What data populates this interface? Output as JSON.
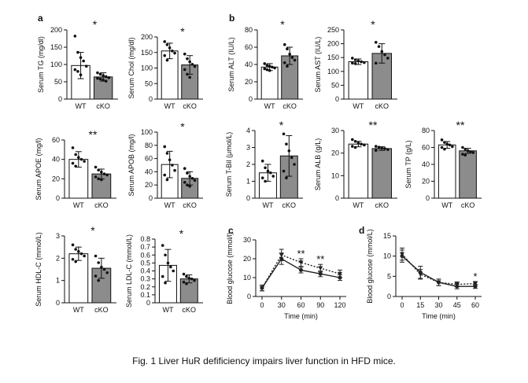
{
  "panel_labels": {
    "a": "a",
    "b": "b",
    "c": "c",
    "d": "d"
  },
  "caption": "Fig. 1 Liver HuR defificiency impairs liver function in HFD mice.",
  "chart_data": [
    {
      "type": "bar",
      "ylabel": "Serum TG (mg/dl)",
      "categories": [
        "WT",
        "cKO"
      ],
      "values": [
        97,
        64
      ],
      "errors": [
        38,
        12
      ],
      "ylim": [
        0,
        200
      ],
      "ticks": [
        0,
        50,
        100,
        150,
        200
      ],
      "significance": "*",
      "points": [
        [
          182,
          135,
          120,
          110,
          95,
          85,
          80,
          70
        ],
        [
          76,
          72,
          68,
          65,
          62,
          60,
          58,
          55,
          52
        ]
      ]
    },
    {
      "type": "bar",
      "ylabel": "Serum Chol (mg/dl)",
      "categories": [
        "WT",
        "cKO"
      ],
      "values": [
        155,
        110
      ],
      "errors": [
        25,
        30
      ],
      "ylim": [
        0,
        200
      ],
      "ticks": [
        0,
        50,
        100,
        150,
        200
      ],
      "significance": "*",
      "points": [
        [
          185,
          175,
          165,
          155,
          148,
          140,
          125
        ],
        [
          145,
          130,
          120,
          112,
          105,
          95,
          80,
          70
        ]
      ]
    },
    {
      "type": "bar",
      "ylabel": "Serum ALT (IU/L)",
      "categories": [
        "WT",
        "cKO"
      ],
      "values": [
        37,
        50
      ],
      "errors": [
        4,
        10
      ],
      "ylim": [
        0,
        80
      ],
      "ticks": [
        0,
        20,
        40,
        60,
        80
      ],
      "significance": "*",
      "points": [
        [
          41,
          39,
          38,
          37,
          36,
          35,
          34,
          33
        ],
        [
          63,
          58,
          52,
          48,
          45,
          42,
          38
        ]
      ]
    },
    {
      "type": "bar",
      "ylabel": "Serum AST (IU/L)",
      "categories": [
        "WT",
        "cKO"
      ],
      "values": [
        135,
        165
      ],
      "errors": [
        10,
        35
      ],
      "ylim": [
        0,
        250
      ],
      "ticks": [
        0,
        50,
        100,
        150,
        200,
        250
      ],
      "significance": "*",
      "points": [
        [
          148,
          142,
          138,
          135,
          132,
          130,
          128
        ],
        [
          205,
          190,
          172,
          160,
          148,
          130
        ]
      ]
    },
    {
      "type": "bar",
      "ylabel": "Serum APOE (mg/l)",
      "categories": [
        "WT",
        "cKO"
      ],
      "values": [
        40,
        25
      ],
      "errors": [
        8,
        5
      ],
      "ylim": [
        0,
        60
      ],
      "ticks": [
        0,
        20,
        40,
        60
      ],
      "significance": "**",
      "points": [
        [
          52,
          45,
          42,
          40,
          38,
          36,
          33
        ],
        [
          32,
          29,
          27,
          25,
          24,
          22,
          20,
          19
        ]
      ]
    },
    {
      "type": "bar",
      "ylabel": "Serum APOB (mg/l)",
      "categories": [
        "WT",
        "cKO"
      ],
      "values": [
        51,
        30
      ],
      "errors": [
        20,
        10
      ],
      "ylim": [
        0,
        100
      ],
      "ticks": [
        0,
        20,
        40,
        60,
        80,
        100
      ],
      "significance": "*",
      "points": [
        [
          78,
          68,
          58,
          50,
          42,
          35,
          28
        ],
        [
          45,
          38,
          33,
          30,
          27,
          24,
          20,
          18
        ]
      ]
    },
    {
      "type": "bar",
      "ylabel": "Serum T-Bil (μmol/L)",
      "categories": [
        "WT",
        "cKO"
      ],
      "values": [
        1.5,
        2.5
      ],
      "errors": [
        0.5,
        1.2
      ],
      "ylim": [
        0,
        4
      ],
      "ticks": [
        0,
        1,
        2,
        3,
        4
      ],
      "significance": "*",
      "points": [
        [
          2.2,
          1.8,
          1.6,
          1.5,
          1.3,
          1.2,
          1.0
        ],
        [
          3.8,
          3.2,
          2.8,
          2.4,
          2.0,
          1.6,
          1.2
        ]
      ]
    },
    {
      "type": "bar",
      "ylabel": "Serum ALB (g/L)",
      "categories": [
        "WT",
        "cKO"
      ],
      "values": [
        24,
        22
      ],
      "errors": [
        1.2,
        0.8
      ],
      "ylim": [
        0,
        30
      ],
      "ticks": [
        0,
        10,
        20,
        30
      ],
      "significance": "**",
      "points": [
        [
          26,
          25.2,
          24.5,
          24,
          23.6,
          23,
          22.5
        ],
        [
          23,
          22.6,
          22.3,
          22,
          21.6,
          21.2
        ]
      ]
    },
    {
      "type": "bar",
      "ylabel": "Serum TP (g/L)",
      "categories": [
        "WT",
        "cKO"
      ],
      "values": [
        63,
        56
      ],
      "errors": [
        4,
        3
      ],
      "ylim": [
        0,
        80
      ],
      "ticks": [
        0,
        20,
        40,
        60,
        80
      ],
      "significance": "**",
      "points": [
        [
          69,
          66,
          64,
          63,
          61,
          60,
          58
        ],
        [
          60,
          58,
          56,
          55,
          54,
          52,
          51
        ]
      ]
    },
    {
      "type": "bar",
      "ylabel": "Serum HDL-C (mmol/L)",
      "categories": [
        "WT",
        "cKO"
      ],
      "values": [
        2.2,
        1.55
      ],
      "errors": [
        0.3,
        0.45
      ],
      "ylim": [
        0,
        3
      ],
      "ticks": [
        0,
        1,
        2,
        3
      ],
      "significance": "*",
      "points": [
        [
          2.6,
          2.4,
          2.3,
          2.2,
          2.1,
          1.95,
          1.85
        ],
        [
          2.1,
          1.8,
          1.6,
          1.5,
          1.35,
          1.2,
          1.0
        ]
      ]
    },
    {
      "type": "bar",
      "ylabel": "Serum LDL-C (mmol/L)",
      "categories": [
        "WT",
        "cKO"
      ],
      "values": [
        0.47,
        0.3
      ],
      "errors": [
        0.2,
        0.05
      ],
      "ylim": [
        0,
        0.8
      ],
      "ticks": [
        0,
        0.1,
        0.2,
        0.3,
        0.4,
        0.5,
        0.6,
        0.7,
        0.8
      ],
      "significance": "*",
      "points": [
        [
          0.72,
          0.6,
          0.5,
          0.45,
          0.4,
          0.33,
          0.25
        ],
        [
          0.36,
          0.33,
          0.31,
          0.3,
          0.28,
          0.26,
          0.24
        ]
      ]
    },
    {
      "type": "line",
      "ylabel": "Blood glucose (mmol/l)",
      "xlabel": "Time (min)",
      "x": [
        0,
        30,
        60,
        90,
        120
      ],
      "xlim": [
        0,
        120
      ],
      "ylim": [
        0,
        30
      ],
      "yticks": [
        0,
        10,
        20,
        30
      ],
      "series": [
        {
          "style": "solid",
          "values": [
            4.5,
            20,
            14,
            12,
            10
          ],
          "errors": [
            1.5,
            3,
            1.5,
            1.5,
            1.5
          ]
        },
        {
          "style": "dotted",
          "values": [
            4.5,
            22,
            18,
            15,
            12
          ],
          "errors": [
            1.5,
            3,
            2,
            2,
            2
          ]
        }
      ],
      "significance": [
        {
          "x": 60,
          "mark": "**"
        },
        {
          "x": 90,
          "mark": "**"
        }
      ]
    },
    {
      "type": "line",
      "ylabel": "Blood glucose (mmol/L)",
      "xlabel": "Time (min)",
      "x": [
        0,
        15,
        30,
        45,
        60
      ],
      "xlim": [
        0,
        60
      ],
      "ylim": [
        0,
        15
      ],
      "yticks": [
        0,
        5,
        10,
        15
      ],
      "series": [
        {
          "style": "solid",
          "values": [
            10,
            6,
            3.5,
            2.5,
            2.5
          ],
          "errors": [
            1.5,
            1.5,
            0.8,
            0.6,
            0.5
          ]
        },
        {
          "style": "dotted",
          "values": [
            10.5,
            5.5,
            3.5,
            3,
            3.2
          ],
          "errors": [
            1.5,
            1.2,
            0.8,
            0.6,
            0.5
          ]
        }
      ],
      "significance": [
        {
          "x": 60,
          "mark": "*"
        }
      ]
    }
  ]
}
